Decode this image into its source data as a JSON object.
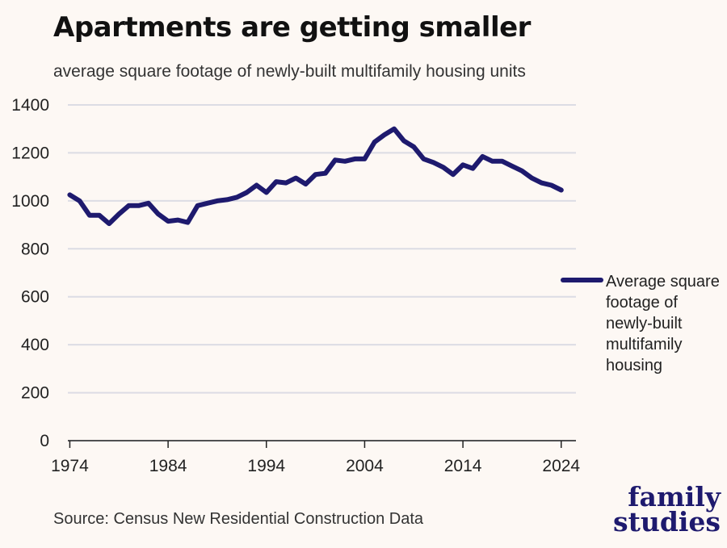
{
  "chart_data": {
    "type": "line",
    "title": "Apartments are getting smaller",
    "subtitle": "average square footage of newly-built multifamily housing units",
    "xlabel": "",
    "ylabel": "",
    "xlim": [
      1973.8,
      2025.5
    ],
    "ylim": [
      0,
      1400
    ],
    "yticks": [
      0,
      200,
      400,
      600,
      800,
      1000,
      1200,
      1400
    ],
    "xticks": [
      1974,
      1984,
      1994,
      2004,
      2014,
      2024
    ],
    "grid": true,
    "legend_position": "right",
    "line_color": "#1e1a6e",
    "series": [
      {
        "name": "Average square footage of newly-built multifamily housing",
        "x": [
          1974,
          1975,
          1976,
          1977,
          1978,
          1979,
          1980,
          1981,
          1982,
          1983,
          1984,
          1985,
          1986,
          1987,
          1988,
          1989,
          1990,
          1991,
          1992,
          1993,
          1994,
          1995,
          1996,
          1997,
          1998,
          1999,
          2000,
          2001,
          2002,
          2003,
          2004,
          2005,
          2006,
          2007,
          2008,
          2009,
          2010,
          2011,
          2012,
          2013,
          2014,
          2015,
          2016,
          2017,
          2018,
          2019,
          2020,
          2021,
          2022,
          2023,
          2024
        ],
        "values": [
          1025,
          1000,
          940,
          940,
          905,
          945,
          980,
          980,
          990,
          945,
          915,
          920,
          910,
          980,
          990,
          1000,
          1005,
          1015,
          1035,
          1065,
          1035,
          1080,
          1075,
          1095,
          1070,
          1110,
          1115,
          1170,
          1165,
          1175,
          1175,
          1245,
          1275,
          1300,
          1250,
          1225,
          1175,
          1160,
          1140,
          1110,
          1150,
          1135,
          1185,
          1165,
          1165,
          1145,
          1125,
          1095,
          1075,
          1065,
          1045
        ]
      }
    ]
  },
  "source": "Source: Census New Residential Construction Data",
  "logo": {
    "line1": "family",
    "line2": "studies"
  }
}
